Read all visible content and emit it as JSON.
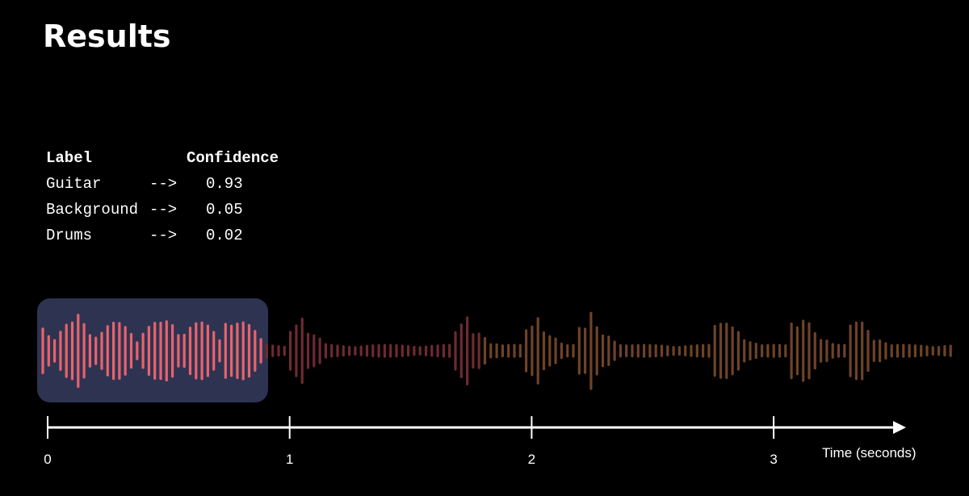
{
  "title": "Results",
  "table": {
    "headers": [
      "Label",
      "Confidence"
    ],
    "rows": [
      [
        "Guitar",
        "-->",
        "0.93"
      ],
      [
        "Background",
        "-->",
        "0.05"
      ],
      [
        "Drums",
        "-->",
        "0.02"
      ]
    ]
  },
  "timeline": {
    "axis_label": "Time (seconds)",
    "ticks": [
      0,
      1,
      2,
      3
    ]
  }
}
